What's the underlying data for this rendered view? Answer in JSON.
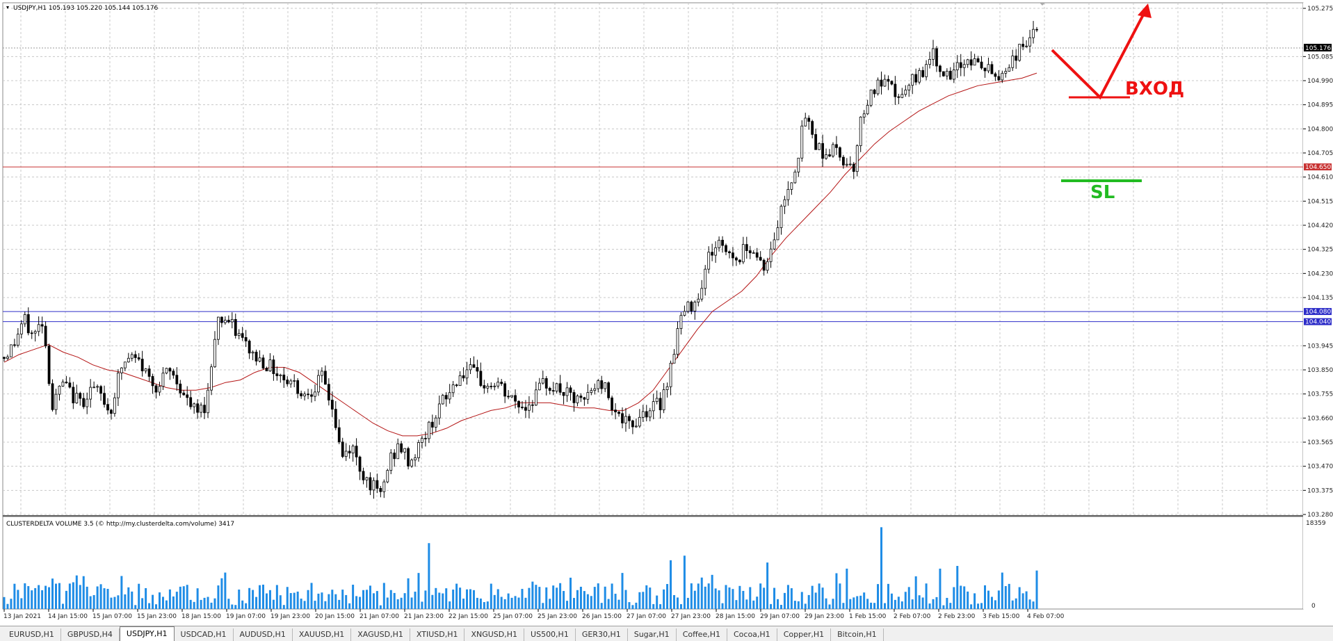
{
  "window": {
    "symbol": "USDJPY,H1",
    "ohlc": "105.193 105.220 105.144 105.176",
    "title_text": "USDJPY,H1  105.193 105.220 105.144 105.176",
    "current_price_label": "105.176"
  },
  "price_axis": {
    "ticks": [
      "105.275",
      "105.085",
      "104.990",
      "104.895",
      "104.800",
      "104.705",
      "104.610",
      "104.515",
      "104.420",
      "104.325",
      "104.230",
      "104.135",
      "103.945",
      "103.850",
      "103.755",
      "103.660",
      "103.565",
      "103.470",
      "103.375",
      "103.280"
    ],
    "min": 103.28,
    "max": 105.275
  },
  "levels": [
    {
      "label": "104.650",
      "value": 104.65,
      "color": "#c83232"
    },
    {
      "label": "104.080",
      "value": 104.08,
      "color": "#2d2dc8"
    },
    {
      "label": "104.040",
      "value": 104.04,
      "color": "#2d2dc8"
    }
  ],
  "time_axis": [
    "13 Jan 2021",
    "14 Jan 15:00",
    "15 Jan 07:00",
    "15 Jan 23:00",
    "18 Jan 15:00",
    "19 Jan 07:00",
    "19 Jan 23:00",
    "20 Jan 15:00",
    "21 Jan 07:00",
    "21 Jan 23:00",
    "22 Jan 15:00",
    "25 Jan 07:00",
    "25 Jan 23:00",
    "26 Jan 15:00",
    "27 Jan 07:00",
    "27 Jan 23:00",
    "28 Jan 15:00",
    "29 Jan 07:00",
    "29 Jan 23:00",
    "1 Feb 15:00",
    "2 Feb 07:00",
    "2 Feb 23:00",
    "3 Feb 15:00",
    "4 Feb 07:00"
  ],
  "annotations": {
    "entry_label": "ВХОД",
    "stop_label": "SL",
    "entry_color": "#ee1111",
    "stop_color": "#22bb22"
  },
  "indicator": {
    "title": "CLUSTERDELTA VOLUME 3.5 (© http://my.clusterdelta.com/volume) 3417",
    "max_label": "18359",
    "min_label": "0",
    "bar_color": "#1e8ce6"
  },
  "colors": {
    "candle": "#000000",
    "moving_average": "#b41414",
    "grid": "#c8c8c8"
  },
  "tabs": [
    {
      "label": "EURUSD,H1",
      "active": false
    },
    {
      "label": "GBPUSD,H4",
      "active": false
    },
    {
      "label": "USDJPY,H1",
      "active": true
    },
    {
      "label": "USDCAD,H1",
      "active": false
    },
    {
      "label": "AUDUSD,H1",
      "active": false
    },
    {
      "label": "XAUUSD,H1",
      "active": false
    },
    {
      "label": "XAGUSD,H1",
      "active": false
    },
    {
      "label": "XTIUSD,H1",
      "active": false
    },
    {
      "label": "XNGUSD,H1",
      "active": false
    },
    {
      "label": "US500,H1",
      "active": false
    },
    {
      "label": "GER30,H1",
      "active": false
    },
    {
      "label": "Sugar,H1",
      "active": false
    },
    {
      "label": "Coffee,H1",
      "active": false
    },
    {
      "label": "Cocoa,H1",
      "active": false
    },
    {
      "label": "Copper,H1",
      "active": false
    },
    {
      "label": "Bitcoin,H1",
      "active": false
    }
  ],
  "chart_data": {
    "type": "candlestick",
    "x_labels": [
      "13 Jan 2021",
      "14 Jan 15:00",
      "15 Jan 07:00",
      "15 Jan 23:00",
      "18 Jan 15:00",
      "19 Jan 07:00",
      "19 Jan 23:00",
      "20 Jan 15:00",
      "21 Jan 07:00",
      "21 Jan 23:00",
      "22 Jan 15:00",
      "25 Jan 07:00",
      "25 Jan 23:00",
      "26 Jan 15:00",
      "27 Jan 07:00",
      "27 Jan 23:00",
      "28 Jan 15:00",
      "29 Jan 07:00",
      "29 Jan 23:00",
      "1 Feb 15:00",
      "2 Feb 07:00",
      "2 Feb 23:00",
      "3 Feb 15:00",
      "4 Feb 07:00"
    ],
    "close_path": [
      103.9,
      103.95,
      104.05,
      103.98,
      104.05,
      103.7,
      103.8,
      103.75,
      103.72,
      103.78,
      103.75,
      103.68,
      103.85,
      103.9,
      103.88,
      103.82,
      103.78,
      103.85,
      103.8,
      103.72,
      103.68,
      103.72,
      104.05,
      104.05,
      104.0,
      103.95,
      103.9,
      103.88,
      103.85,
      103.82,
      103.8,
      103.75,
      103.78,
      103.82,
      103.7,
      103.5,
      103.55,
      103.45,
      103.4,
      103.35,
      103.5,
      103.55,
      103.48,
      103.55,
      103.62,
      103.7,
      103.75,
      103.82,
      103.85,
      103.82,
      103.78,
      103.8,
      103.75,
      103.72,
      103.7,
      103.75,
      103.8,
      103.78,
      103.76,
      103.73,
      103.72,
      103.78,
      103.8,
      103.72,
      103.65,
      103.62,
      103.68,
      103.7,
      103.72,
      103.85,
      104.05,
      104.1,
      104.15,
      104.3,
      104.35,
      104.32,
      104.28,
      104.35,
      104.3,
      104.25,
      104.4,
      104.55,
      104.65,
      104.85,
      104.75,
      104.7,
      104.72,
      104.68,
      104.65,
      104.88,
      104.95,
      104.98,
      104.95,
      104.92,
      104.98,
      105.02,
      105.1,
      105.05,
      104.98,
      105.05,
      105.08,
      105.05,
      105.03,
      105.0,
      105.05,
      105.1,
      105.15,
      105.18
    ],
    "moving_average": [
      103.88,
      103.91,
      103.93,
      103.95,
      103.92,
      103.9,
      103.87,
      103.85,
      103.84,
      103.82,
      103.8,
      103.78,
      103.77,
      103.77,
      103.78,
      103.8,
      103.81,
      103.84,
      103.86,
      103.86,
      103.84,
      103.8,
      103.76,
      103.72,
      103.68,
      103.64,
      103.61,
      103.59,
      103.59,
      103.6,
      103.62,
      103.65,
      103.67,
      103.69,
      103.7,
      103.72,
      103.72,
      103.72,
      103.71,
      103.7,
      103.7,
      103.69,
      103.69,
      103.72,
      103.77,
      103.85,
      103.93,
      104.01,
      104.08,
      104.12,
      104.16,
      104.22,
      104.3,
      104.37,
      104.43,
      104.49,
      104.55,
      104.62,
      104.68,
      104.74,
      104.79,
      104.83,
      104.87,
      104.9,
      104.93,
      104.95,
      104.97,
      104.98,
      104.99,
      105.0,
      105.02
    ],
    "levels": [
      104.65,
      104.08,
      104.04
    ],
    "indicator": {
      "name": "CLUSTERDELTA VOLUME 3.5",
      "max": 18359,
      "min": 0,
      "latest": 3417
    }
  }
}
